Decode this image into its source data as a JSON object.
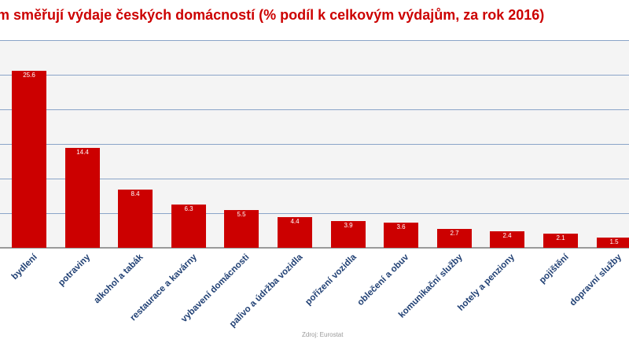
{
  "chart_data": {
    "type": "bar",
    "title": "…m směřují výdaje českých domácností (% podíl k celkovým výdajům, za rok 2016)",
    "xlabel": "",
    "ylabel": "",
    "ylim": [
      0,
      30
    ],
    "y_grid_step": 5,
    "grid": true,
    "legend": null,
    "categories": [
      "bydlení",
      "potraviny",
      "alkohol a tabák",
      "restaurace a kavárny",
      "vybavení domácnosti",
      "palivo a údržba vozidla",
      "pořízení vozidla",
      "oblečení a obuv",
      "komunikační služby",
      "hotely a penziony",
      "pojištění",
      "dopravní služby"
    ],
    "values": [
      25.6,
      14.4,
      8.4,
      6.3,
      5.5,
      4.4,
      3.9,
      3.6,
      2.7,
      2.4,
      2.1,
      1.5
    ],
    "value_labels": [
      "25.6",
      "14.4",
      "8.4",
      "6.3",
      "5.5",
      "4.4",
      "3.9",
      "3.6",
      "2.7",
      "2.4",
      "2.1",
      "1.5"
    ],
    "bar_color": "#cc0000",
    "source": "Zdroj: Eurostat"
  },
  "header": {
    "title": "m směřují výdaje českých domácností (% podíl k celkovým výdajům, za rok 2016)"
  },
  "footer": {
    "source": "Zdroj: Eurostat"
  }
}
